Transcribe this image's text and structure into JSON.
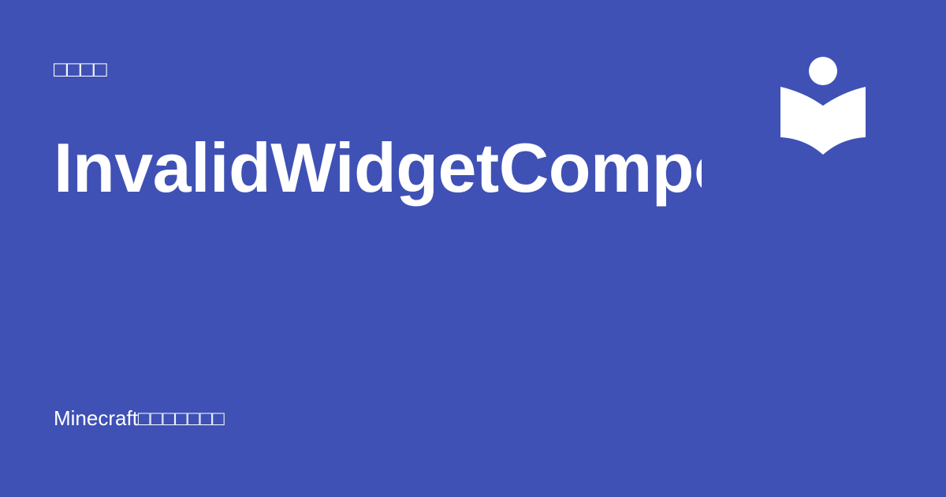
{
  "page": {
    "background_color": "#3f51b5",
    "text_color": "#ffffff"
  },
  "header": {
    "category": "□□□□"
  },
  "main": {
    "title": "InvalidWidgetComponent"
  },
  "logo": {
    "icon": "reader-book-icon",
    "color": "#ffffff"
  },
  "footer": {
    "site_name": "Minecraft□□□□□□□"
  }
}
